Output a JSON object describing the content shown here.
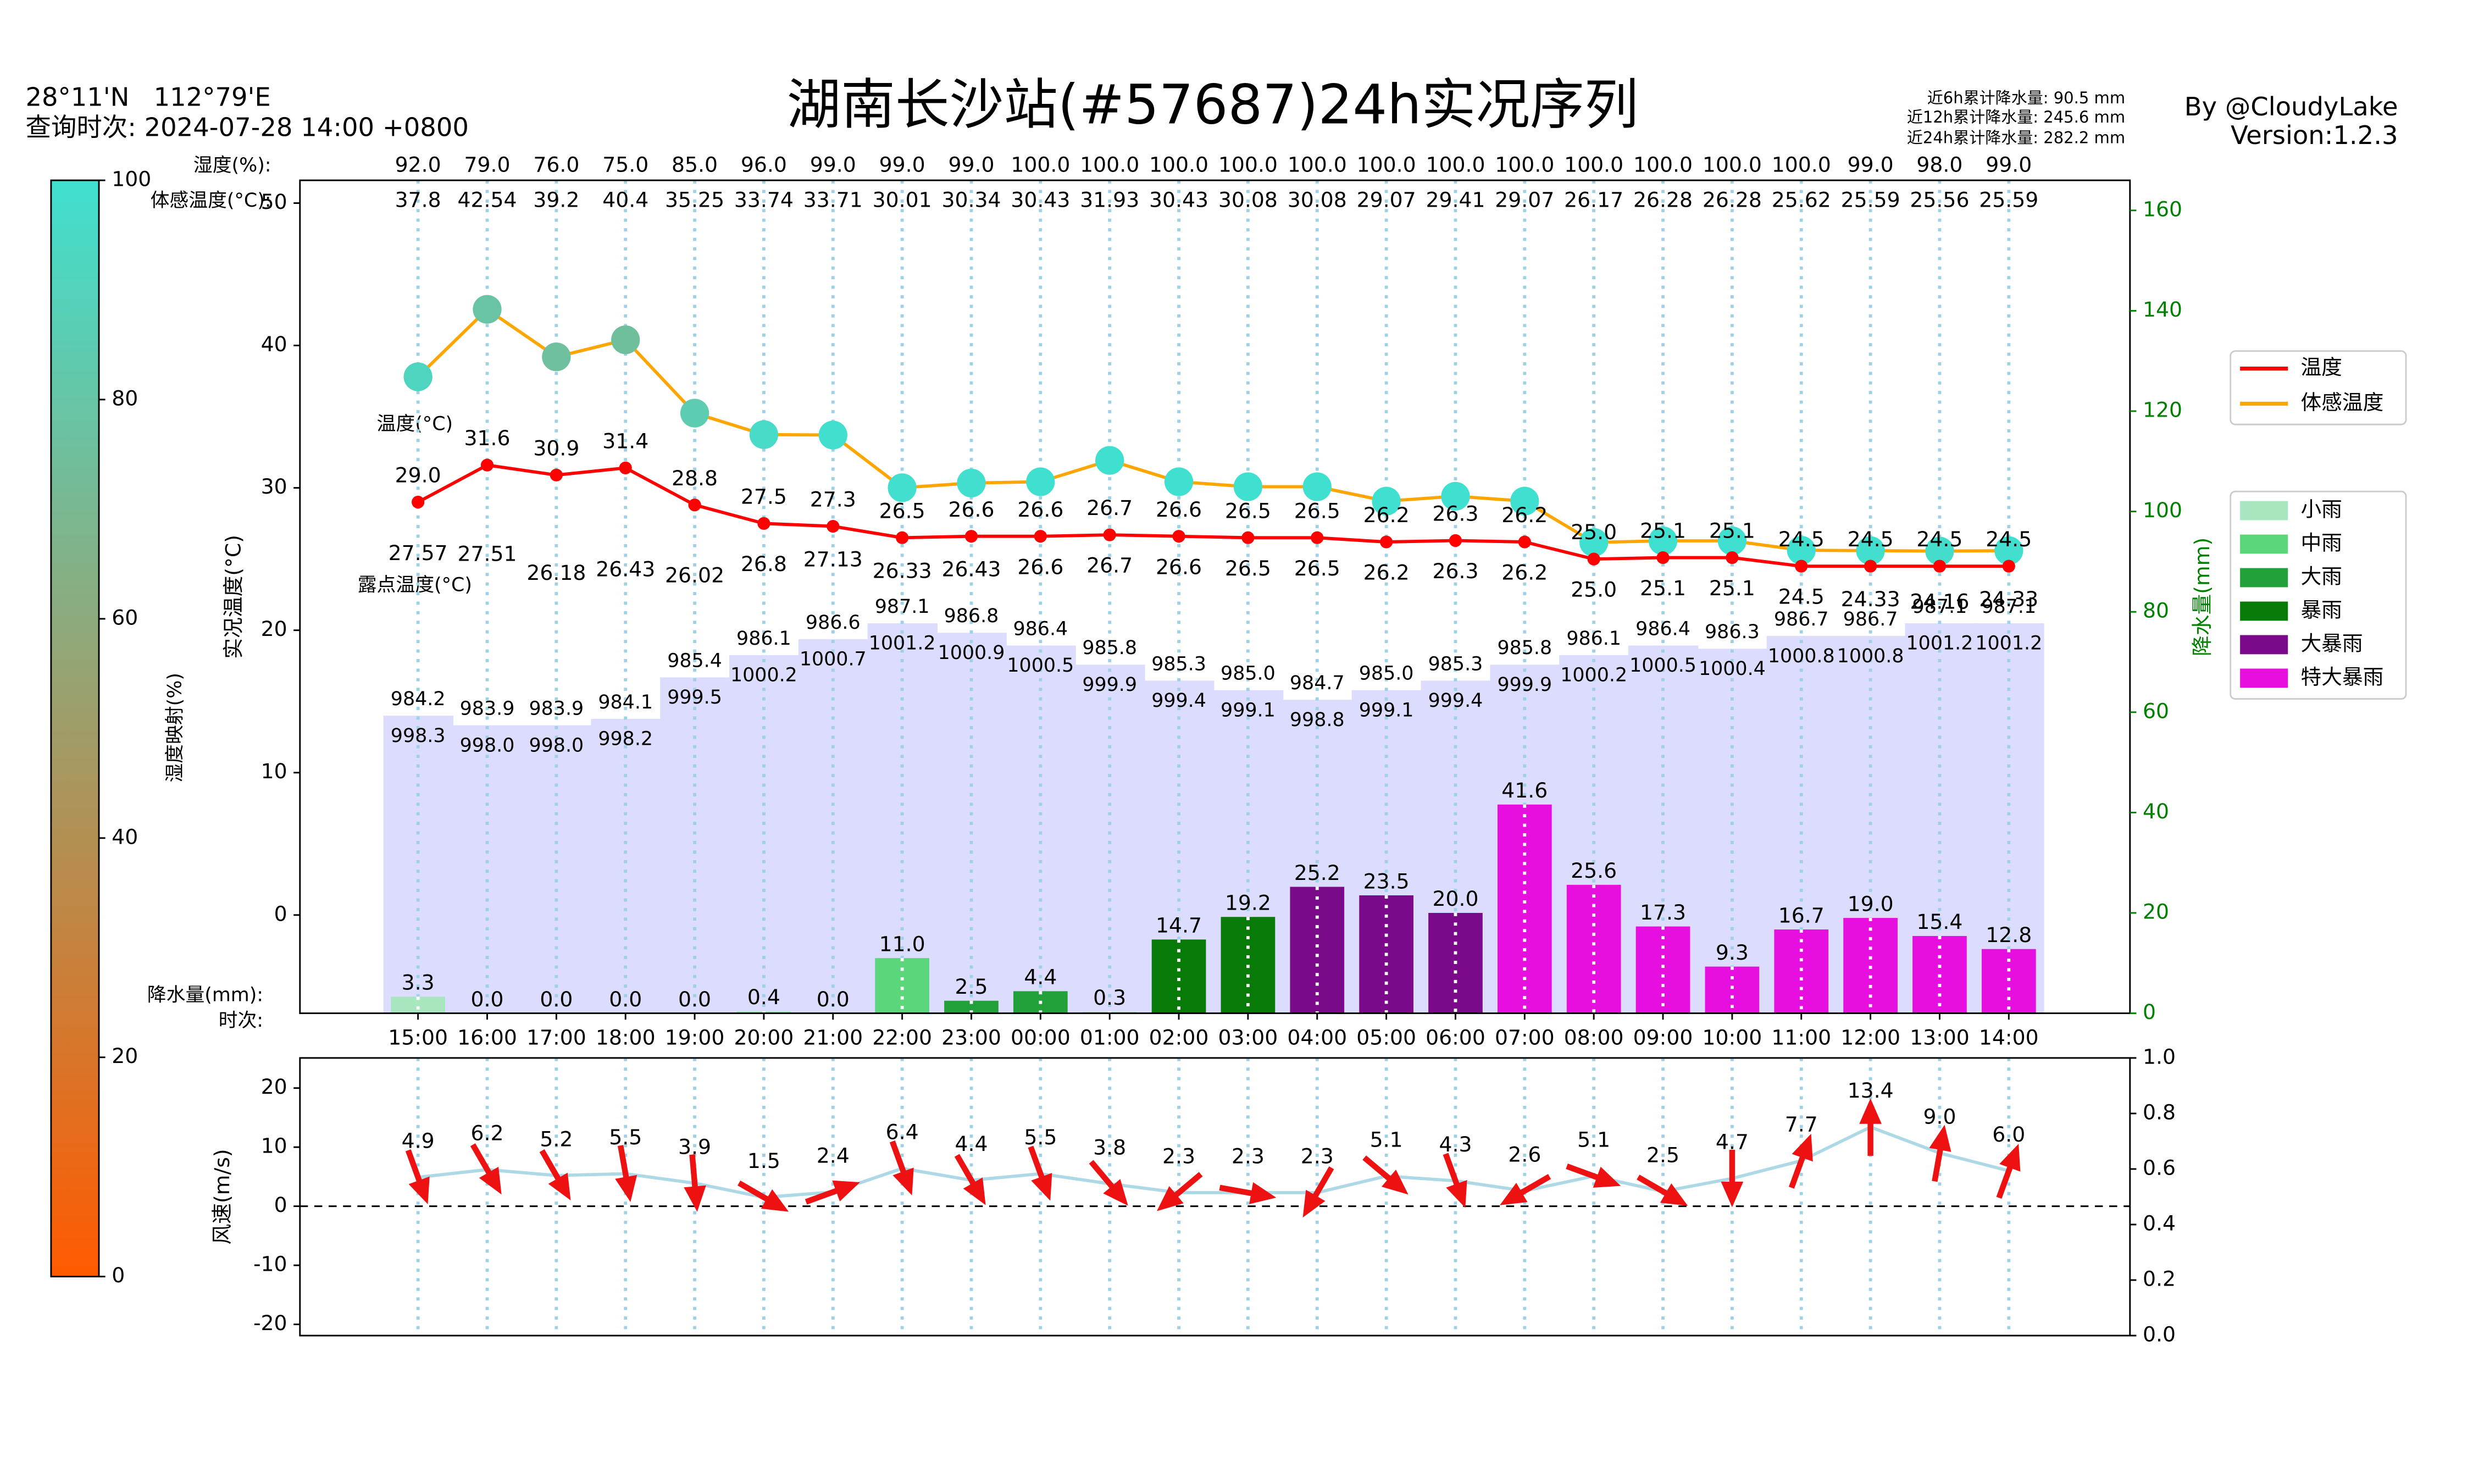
{
  "header": {
    "coords": "28°11'N   112°79'E",
    "query_time": "查询时次: 2024-07-28 14:00 +0800",
    "title": "湖南长沙站(#57687)24h实况序列",
    "rain_6h": "近6h累计降水量: 90.5 mm",
    "rain_12h": "近12h累计降水量: 245.6 mm",
    "rain_24h": "近24h累计降水量: 282.2 mm",
    "author": "By @CloudyLake",
    "version": "Version:1.2.3"
  },
  "colorbar": {
    "label": "湿度映射(%)",
    "lim": [
      0,
      100
    ],
    "ticks": [
      0,
      20,
      40,
      60,
      80,
      100
    ],
    "colors": [
      "#ff5a00",
      "#40e0d0"
    ]
  },
  "chart_data": [
    {
      "type": "combo",
      "categories": [
        "15:00",
        "16:00",
        "17:00",
        "18:00",
        "19:00",
        "20:00",
        "21:00",
        "22:00",
        "23:00",
        "00:00",
        "01:00",
        "02:00",
        "03:00",
        "04:00",
        "05:00",
        "06:00",
        "07:00",
        "08:00",
        "09:00",
        "10:00",
        "11:00",
        "12:00",
        "13:00",
        "14:00"
      ],
      "ylabel": "实况温度(°C)",
      "y2label": "降水量(mm)",
      "ylim": [
        -6.9,
        51.6
      ],
      "yticks": [
        0,
        10,
        20,
        30,
        40,
        50
      ],
      "y2lim": [
        0,
        166
      ],
      "y2ticks": [
        0,
        20,
        40,
        60,
        80,
        100,
        120,
        140,
        160
      ],
      "row_labels": {
        "humidity": "湿度(%):",
        "feels": "体感温度(°C):",
        "temp": "温度(°C)",
        "dew": "露点温度(°C)",
        "rain": "降水量(mm):",
        "time": "时次:"
      },
      "humidity": {
        "values": [
          92,
          79,
          76,
          75,
          85,
          96,
          99,
          99,
          99,
          100,
          100,
          100,
          100,
          100,
          100,
          100,
          100,
          100,
          100,
          100,
          100,
          99,
          98,
          99
        ],
        "value_labels": [
          "92.0",
          "79.0",
          "76.0",
          "75.0",
          "85.0",
          "96.0",
          "99.0",
          "99.0",
          "99.0",
          "100.0",
          "100.0",
          "100.0",
          "100.0",
          "100.0",
          "100.0",
          "100.0",
          "100.0",
          "100.0",
          "100.0",
          "100.0",
          "100.0",
          "99.0",
          "98.0",
          "99.0"
        ]
      },
      "series": [
        {
          "name": "温度",
          "color": "#ff0000",
          "values": [
            29.0,
            31.6,
            30.9,
            31.4,
            28.8,
            27.5,
            27.3,
            26.5,
            26.6,
            26.6,
            26.7,
            26.6,
            26.5,
            26.5,
            26.2,
            26.3,
            26.2,
            25.0,
            25.1,
            25.1,
            24.5,
            24.5,
            24.5,
            24.5
          ],
          "value_labels": [
            "29.0",
            "31.6",
            "30.9",
            "31.4",
            "28.8",
            "27.5",
            "27.3",
            "26.5",
            "26.6",
            "26.6",
            "26.7",
            "26.6",
            "26.5",
            "26.5",
            "26.2",
            "26.3",
            "26.2",
            "25.0",
            "25.1",
            "25.1",
            "24.5",
            "24.5",
            "24.5",
            "24.5"
          ]
        },
        {
          "name": "体感温度",
          "color": "#ffa500",
          "values": [
            37.8,
            42.54,
            39.2,
            40.4,
            35.25,
            33.74,
            33.71,
            30.01,
            30.34,
            30.43,
            31.93,
            30.43,
            30.08,
            30.08,
            29.07,
            29.41,
            29.07,
            26.17,
            26.28,
            26.28,
            25.62,
            25.59,
            25.56,
            25.59
          ]
        }
      ],
      "dew_point": {
        "values": [
          27.57,
          27.51,
          26.18,
          26.43,
          26.02,
          26.8,
          27.13,
          26.33,
          26.43,
          26.6,
          26.7,
          26.6,
          26.5,
          26.5,
          26.2,
          26.3,
          26.2,
          25.0,
          25.1,
          25.1,
          24.5,
          24.33,
          24.16,
          24.33
        ],
        "value_labels": [
          "27.57",
          "27.51",
          "26.18",
          "26.43",
          "26.02",
          "26.8",
          "27.13",
          "26.33",
          "26.43",
          "26.6",
          "26.7",
          "26.6",
          "26.5",
          "26.5",
          "26.2",
          "26.3",
          "26.2",
          "25.0",
          "25.1",
          "25.1",
          "24.5",
          "24.33",
          "24.16",
          "24.33"
        ]
      },
      "pressure": {
        "color": "#dcdcff",
        "values": [
          984.2,
          983.9,
          983.9,
          984.1,
          985.4,
          986.1,
          986.6,
          987.1,
          986.8,
          986.4,
          985.8,
          985.3,
          985.0,
          984.7,
          985.0,
          985.3,
          985.8,
          986.1,
          986.4,
          986.3,
          986.7,
          986.7,
          987.1,
          987.1
        ],
        "value_labels": [
          "984.2",
          "983.9",
          "983.9",
          "984.1",
          "985.4",
          "986.1",
          "986.6",
          "987.1",
          "986.8",
          "986.4",
          "985.8",
          "985.3",
          "985.0",
          "984.7",
          "985.0",
          "985.3",
          "985.8",
          "986.1",
          "986.4",
          "986.3",
          "986.7",
          "986.7",
          "987.1",
          "987.1"
        ]
      },
      "pressure_2": {
        "values": [
          998.3,
          998.0,
          998.0,
          998.2,
          999.5,
          1000.2,
          1000.7,
          1001.2,
          1000.9,
          1000.5,
          999.9,
          999.4,
          999.1,
          998.8,
          999.1,
          999.4,
          999.9,
          1000.2,
          1000.5,
          1000.4,
          1000.8,
          1000.8,
          1001.2,
          1001.2
        ],
        "value_labels": [
          "998.3",
          "998.0",
          "998.0",
          "998.2",
          "999.5",
          "1000.2",
          "1000.7",
          "1001.2",
          "1000.9",
          "1000.5",
          "999.9",
          "999.4",
          "999.1",
          "998.8",
          "999.1",
          "999.4",
          "999.9",
          "1000.2",
          "1000.5",
          "1000.4",
          "1000.8",
          "1000.8",
          "1001.2",
          "1001.2"
        ]
      },
      "rain": {
        "axis": "y2",
        "values": [
          3.3,
          0,
          0,
          0,
          0,
          0.4,
          0,
          11.0,
          2.5,
          4.4,
          0.3,
          14.7,
          19.2,
          25.2,
          23.5,
          20.0,
          41.6,
          25.6,
          17.3,
          9.3,
          16.7,
          19.0,
          15.4,
          12.8
        ],
        "value_labels": [
          "3.3",
          "0.0",
          "0.0",
          "0.0",
          "0.0",
          "0.4",
          "0.0",
          "11.0",
          "2.5",
          "4.4",
          "0.3",
          "14.7",
          "19.2",
          "25.2",
          "23.5",
          "20.0",
          "41.6",
          "25.6",
          "17.3",
          "9.3",
          "16.7",
          "19.0",
          "15.4",
          "12.8"
        ],
        "colors": [
          "#a8e6c0",
          "#a8e6c0",
          "#a8e6c0",
          "#a8e6c0",
          "#a8e6c0",
          "#a8e6c0",
          "#a8e6c0",
          "#5bd67a",
          "#22a03a",
          "#22a03a",
          "#a8e6c0",
          "#087a08",
          "#087a08",
          "#7a0a8a",
          "#7a0a8a",
          "#7a0a8a",
          "#e60fe0",
          "#e60fe0",
          "#e60fe0",
          "#e60fe0",
          "#e60fe0",
          "#e60fe0",
          "#e60fe0",
          "#e60fe0"
        ]
      },
      "rain_levels": [
        {
          "name": "小雨",
          "color": "#a8e6c0"
        },
        {
          "name": "中雨",
          "color": "#5bd67a"
        },
        {
          "name": "大雨",
          "color": "#22a03a"
        },
        {
          "name": "暴雨",
          "color": "#087a08"
        },
        {
          "name": "大暴雨",
          "color": "#7a0a8a"
        },
        {
          "name": "特大暴雨",
          "color": "#e60fe0"
        }
      ]
    },
    {
      "type": "wind",
      "ylabel": "风速(m/s)",
      "ylim": [
        -21.9,
        25.1
      ],
      "yticks": [
        -20,
        -10,
        0,
        10,
        20
      ],
      "y2lim": [
        0,
        1
      ],
      "y2ticks": [
        {
          "value": 0,
          "label": "0.0"
        },
        0.2,
        0.4,
        0.6,
        0.8,
        {
          "value": 1,
          "label": "1.0"
        }
      ],
      "line_color": "#add8e6",
      "arrow_color": "#ee1111",
      "values": [
        4.9,
        6.2,
        5.2,
        5.5,
        3.9,
        1.5,
        2.4,
        6.4,
        4.4,
        5.5,
        3.8,
        2.3,
        2.3,
        2.3,
        5.1,
        4.3,
        2.6,
        5.1,
        2.5,
        4.7,
        7.7,
        13.4,
        9.0,
        6.0
      ],
      "value_labels": [
        "4.9",
        "6.2",
        "5.2",
        "5.5",
        "3.9",
        "1.5",
        "2.4",
        "6.4",
        "4.4",
        "5.5",
        "3.8",
        "2.3",
        "2.3",
        "2.3",
        "5.1",
        "4.3",
        "2.6",
        "5.1",
        "2.5",
        "4.7",
        "7.7",
        "13.4",
        "9.0",
        "6.0"
      ],
      "directions": [
        160,
        150,
        150,
        170,
        175,
        120,
        70,
        160,
        150,
        160,
        140,
        230,
        100,
        210,
        130,
        160,
        240,
        110,
        120,
        180,
        20,
        0,
        10,
        20
      ]
    }
  ]
}
